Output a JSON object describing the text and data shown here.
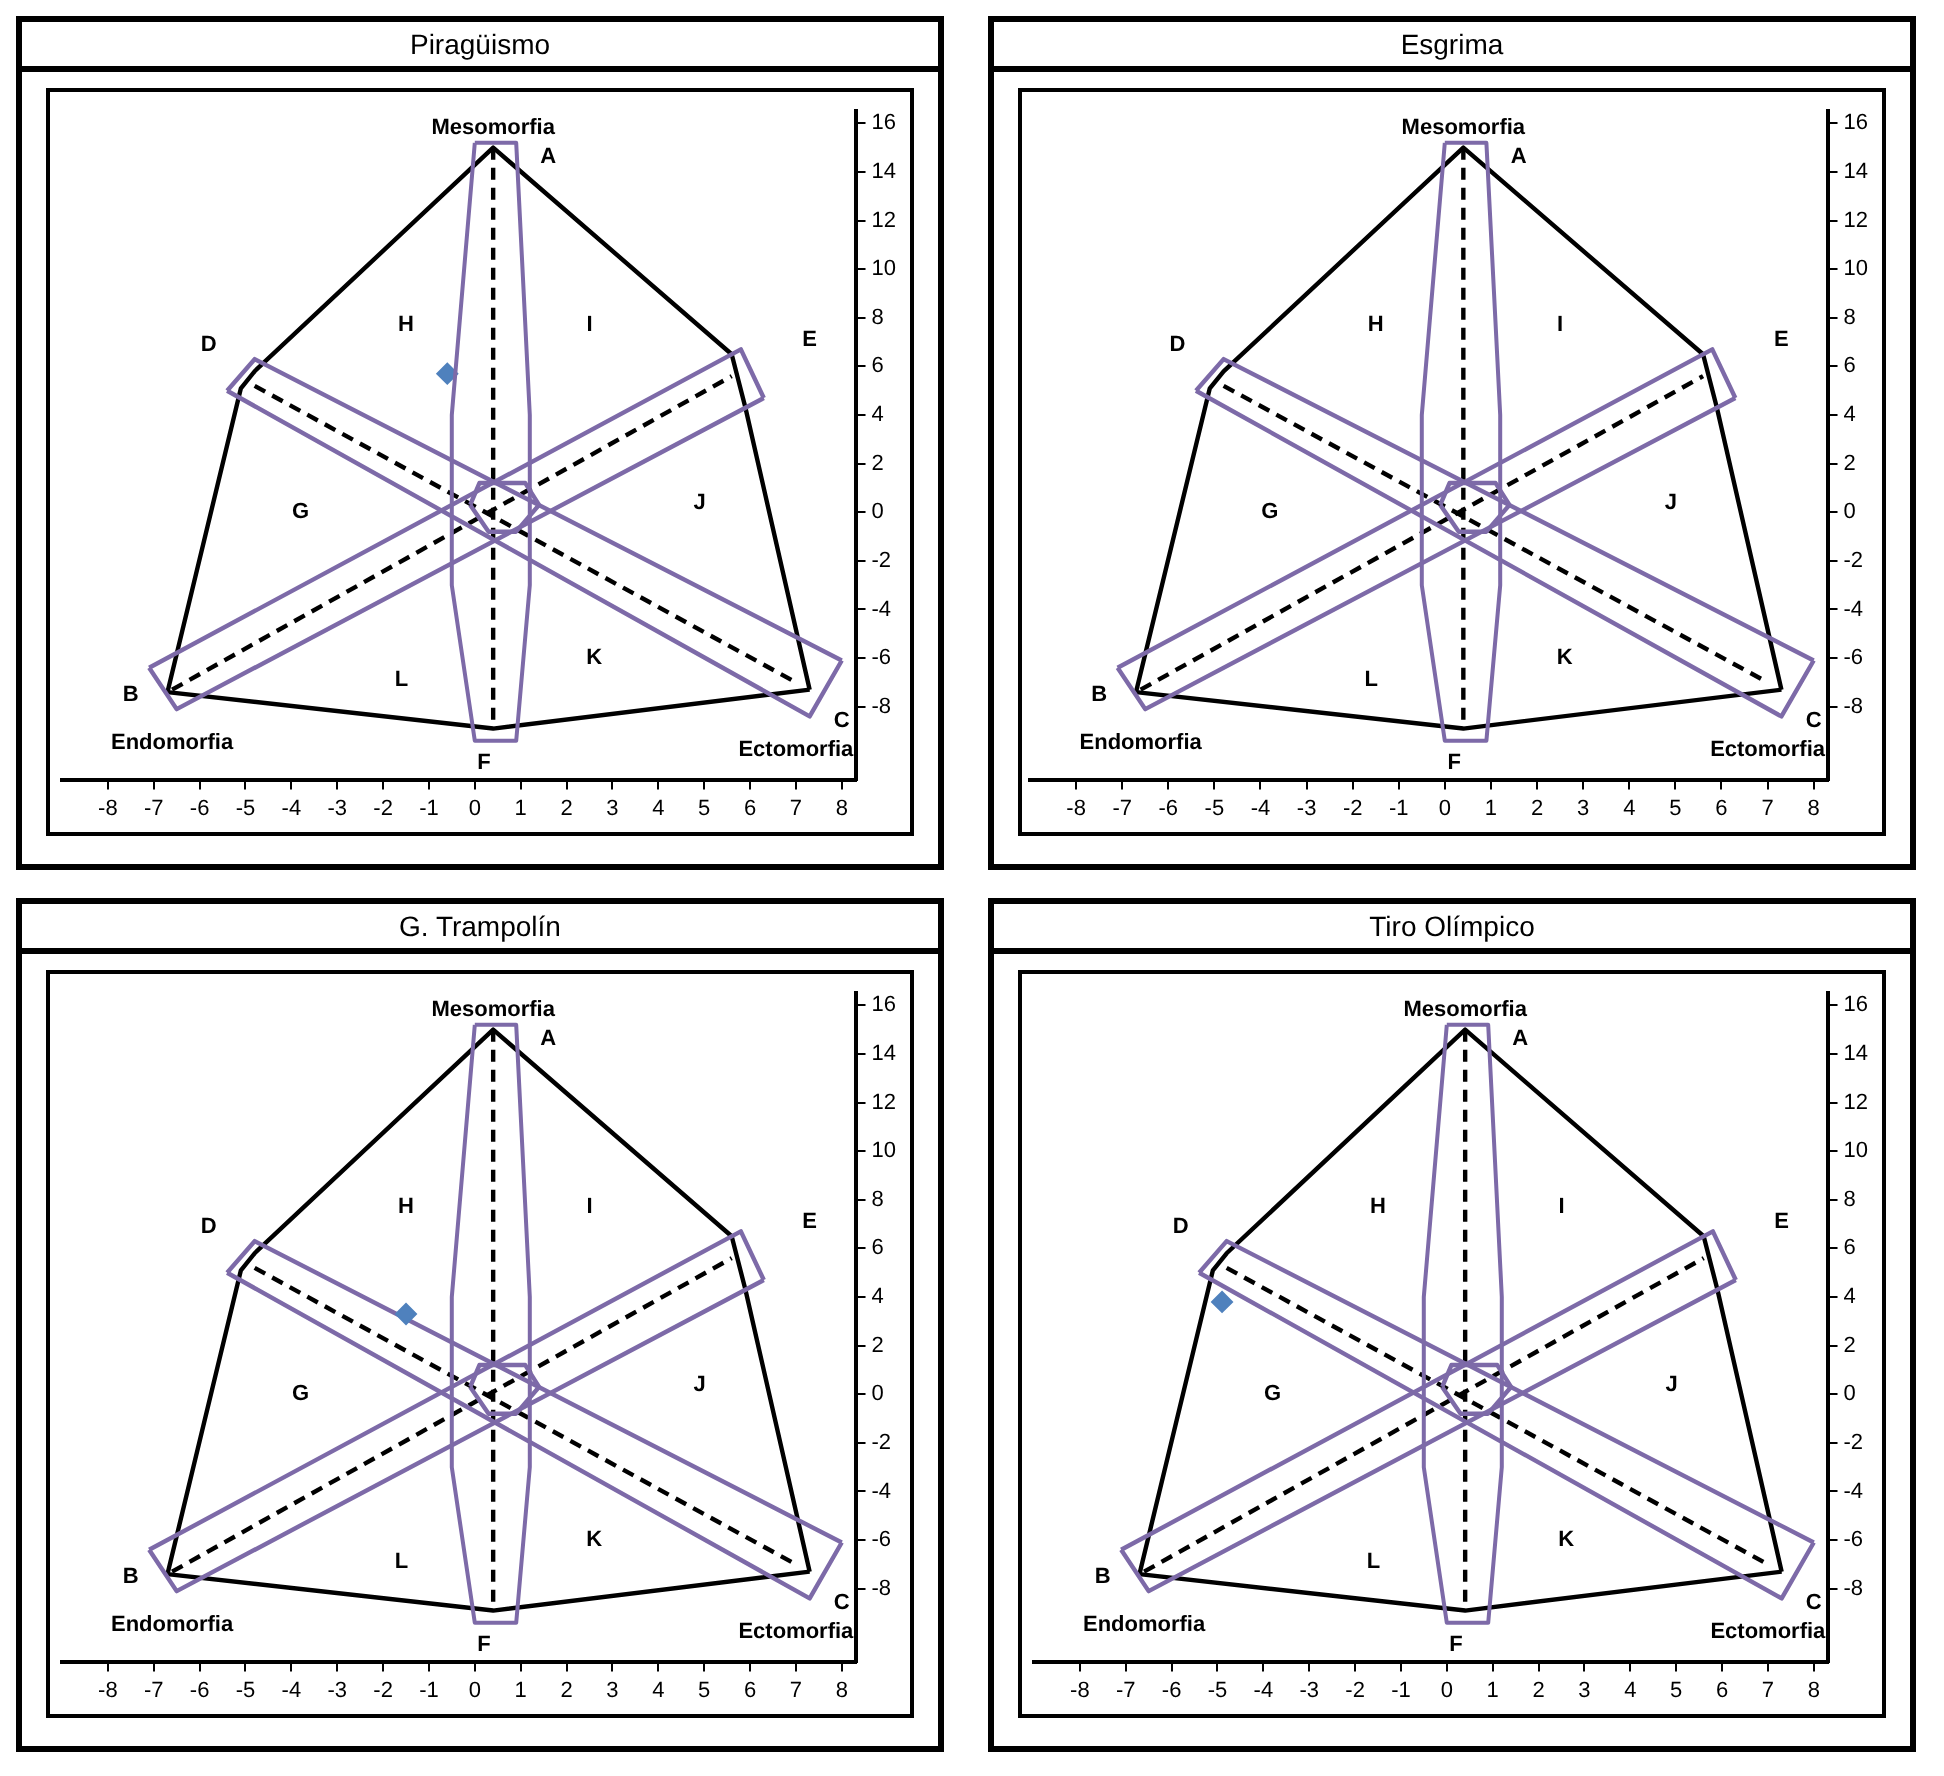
{
  "chart_data": [
    {
      "type": "scatter",
      "title": "Piragüismo",
      "xlim": [
        -9,
        8.3
      ],
      "ylim": [
        -11,
        16.5
      ],
      "xticks": [
        -8,
        -7,
        -6,
        -5,
        -4,
        -3,
        -2,
        -1,
        0,
        1,
        2,
        3,
        4,
        5,
        6,
        7,
        8
      ],
      "yticks": [
        -8,
        -6,
        -4,
        -2,
        0,
        2,
        4,
        6,
        8,
        10,
        12,
        14,
        16
      ],
      "grid": false,
      "legend": false,
      "series": [
        {
          "type": "line",
          "color": "#000000",
          "x": [
            -6.7,
            -5.1,
            -4.8,
            0.4,
            5.6,
            5.9,
            7.3
          ],
          "values": [
            -7.4,
            5.1,
            5.8,
            15,
            6.5,
            4.3,
            -7.3
          ]
        },
        {
          "type": "line",
          "color": "#000000",
          "x": [
            -6.7,
            0.4,
            7.3
          ],
          "values": [
            -7.4,
            -8.9,
            -7.3
          ]
        },
        {
          "type": "line",
          "line_style": "dashed",
          "color": "#000000",
          "x": [
            -4.8,
            7.0
          ],
          "values": [
            5.2,
            -7.0
          ]
        },
        {
          "type": "line",
          "line_style": "dashed",
          "color": "#000000",
          "x": [
            -6.6,
            5.6
          ],
          "values": [
            -7.3,
            5.6
          ]
        },
        {
          "type": "line",
          "color": "#7d6aa8",
          "x": [
            -5.4,
            -4.8,
            8.0
          ],
          "values": [
            5.0,
            6.3,
            -6.1
          ]
        },
        {
          "type": "line",
          "color": "#7d6aa8",
          "x": [
            -5.4,
            7.3,
            8.0
          ],
          "values": [
            5.0,
            -8.4,
            -6.1
          ]
        },
        {
          "type": "line",
          "color": "#7d6aa8",
          "x": [
            -7.1,
            5.8,
            6.3
          ],
          "values": [
            -6.4,
            6.7,
            4.7
          ]
        },
        {
          "type": "line",
          "color": "#7d6aa8",
          "x": [
            -7.1,
            -6.5,
            6.3
          ],
          "values": [
            -6.4,
            -8.1,
            4.7
          ]
        },
        {
          "type": "line",
          "color": "#7d6aa8",
          "x": [
            -0.1,
            0.1,
            1.1,
            1.4
          ],
          "values": [
            0.3,
            1.2,
            1.2,
            0.3
          ]
        },
        {
          "type": "line",
          "color": "#7d6aa8",
          "x": [
            -0.1,
            0.3,
            0.9,
            1.4
          ],
          "values": [
            0.3,
            -0.8,
            -0.8,
            0.3
          ]
        },
        {
          "type": "scatter",
          "marker": "diamond",
          "color": "#4f81bd",
          "x": [
            -0.6
          ],
          "values": [
            5.7
          ]
        }
      ],
      "ref_lines": [
        {
          "axis": "x",
          "value": 0.4,
          "line_style": "dashed",
          "color": "#000000"
        }
      ],
      "annotations": [
        "Mesomorfia",
        "A",
        "D",
        "H",
        "I",
        "E",
        "G",
        "J",
        "L",
        "K",
        "B",
        "C",
        "F",
        "Endomorfia",
        "Ectomorfia"
      ]
    },
    {
      "type": "scatter",
      "title": "Esgrima",
      "xlim": [
        -9,
        8.3
      ],
      "ylim": [
        -11,
        16.5
      ],
      "xticks": [
        -8,
        -7,
        -6,
        -5,
        -4,
        -3,
        -2,
        -1,
        0,
        1,
        2,
        3,
        4,
        5,
        6,
        7,
        8
      ],
      "yticks": [
        -8,
        -6,
        -4,
        -2,
        0,
        2,
        4,
        6,
        8,
        10,
        12,
        14,
        16
      ],
      "grid": false,
      "legend": false,
      "series": [
        {
          "type": "line",
          "color": "#000000",
          "x": [
            -6.7,
            -5.1,
            -4.8,
            0.4,
            5.6,
            5.9,
            7.3
          ],
          "values": [
            -7.4,
            5.1,
            5.8,
            15,
            6.5,
            4.3,
            -7.3
          ]
        },
        {
          "type": "line",
          "color": "#000000",
          "x": [
            -6.7,
            0.4,
            7.3
          ],
          "values": [
            -7.4,
            -8.9,
            -7.3
          ]
        },
        {
          "type": "line",
          "line_style": "dashed",
          "color": "#000000",
          "x": [
            -4.8,
            7.0
          ],
          "values": [
            5.2,
            -7.0
          ]
        },
        {
          "type": "line",
          "line_style": "dashed",
          "color": "#000000",
          "x": [
            -6.6,
            5.6
          ],
          "values": [
            -7.3,
            5.6
          ]
        },
        {
          "type": "line",
          "color": "#7d6aa8",
          "x": [
            -5.4,
            -4.8,
            8.0
          ],
          "values": [
            5.0,
            6.3,
            -6.1
          ]
        },
        {
          "type": "line",
          "color": "#7d6aa8",
          "x": [
            -5.4,
            7.3,
            8.0
          ],
          "values": [
            5.0,
            -8.4,
            -6.1
          ]
        },
        {
          "type": "line",
          "color": "#7d6aa8",
          "x": [
            -7.1,
            5.8,
            6.3
          ],
          "values": [
            -6.4,
            6.7,
            4.7
          ]
        },
        {
          "type": "line",
          "color": "#7d6aa8",
          "x": [
            -7.1,
            -6.5,
            6.3
          ],
          "values": [
            -6.4,
            -8.1,
            4.7
          ]
        },
        {
          "type": "line",
          "color": "#7d6aa8",
          "x": [
            -0.1,
            0.1,
            1.1,
            1.4
          ],
          "values": [
            0.3,
            1.2,
            1.2,
            0.3
          ]
        },
        {
          "type": "line",
          "color": "#7d6aa8",
          "x": [
            -0.1,
            0.3,
            0.9,
            1.4
          ],
          "values": [
            0.3,
            -0.8,
            -0.8,
            0.3
          ]
        }
      ],
      "ref_lines": [
        {
          "axis": "x",
          "value": 0.4,
          "line_style": "dashed",
          "color": "#000000"
        }
      ],
      "annotations": [
        "Mesomorfia",
        "A",
        "D",
        "H",
        "I",
        "E",
        "G",
        "J",
        "L",
        "K",
        "B",
        "C",
        "F",
        "Endomorfia",
        "Ectomorfia"
      ]
    },
    {
      "type": "scatter",
      "title": "G. Trampolín",
      "xlim": [
        -9,
        8.3
      ],
      "ylim": [
        -11,
        16.5
      ],
      "xticks": [
        -8,
        -7,
        -6,
        -5,
        -4,
        -3,
        -2,
        -1,
        0,
        1,
        2,
        3,
        4,
        5,
        6,
        7,
        8
      ],
      "yticks": [
        -8,
        -6,
        -4,
        -2,
        0,
        2,
        4,
        6,
        8,
        10,
        12,
        14,
        16
      ],
      "grid": false,
      "legend": false,
      "series": [
        {
          "type": "line",
          "color": "#000000",
          "x": [
            -6.7,
            -5.1,
            -4.8,
            0.4,
            5.6,
            5.9,
            7.3
          ],
          "values": [
            -7.4,
            5.1,
            5.8,
            15,
            6.5,
            4.3,
            -7.3
          ]
        },
        {
          "type": "line",
          "color": "#000000",
          "x": [
            -6.7,
            0.4,
            7.3
          ],
          "values": [
            -7.4,
            -8.9,
            -7.3
          ]
        },
        {
          "type": "line",
          "line_style": "dashed",
          "color": "#000000",
          "x": [
            -4.8,
            7.0
          ],
          "values": [
            5.2,
            -7.0
          ]
        },
        {
          "type": "line",
          "line_style": "dashed",
          "color": "#000000",
          "x": [
            -6.6,
            5.6
          ],
          "values": [
            -7.3,
            5.6
          ]
        },
        {
          "type": "line",
          "color": "#7d6aa8",
          "x": [
            -5.4,
            -4.8,
            8.0
          ],
          "values": [
            5.0,
            6.3,
            -6.1
          ]
        },
        {
          "type": "line",
          "color": "#7d6aa8",
          "x": [
            -5.4,
            7.3,
            8.0
          ],
          "values": [
            5.0,
            -8.4,
            -6.1
          ]
        },
        {
          "type": "line",
          "color": "#7d6aa8",
          "x": [
            -7.1,
            5.8,
            6.3
          ],
          "values": [
            -6.4,
            6.7,
            4.7
          ]
        },
        {
          "type": "line",
          "color": "#7d6aa8",
          "x": [
            -7.1,
            -6.5,
            6.3
          ],
          "values": [
            -6.4,
            -8.1,
            4.7
          ]
        },
        {
          "type": "line",
          "color": "#7d6aa8",
          "x": [
            -0.1,
            0.1,
            1.1,
            1.4
          ],
          "values": [
            0.3,
            1.2,
            1.2,
            0.3
          ]
        },
        {
          "type": "line",
          "color": "#7d6aa8",
          "x": [
            -0.1,
            0.3,
            0.9,
            1.4
          ],
          "values": [
            0.3,
            -0.8,
            -0.8,
            0.3
          ]
        },
        {
          "type": "scatter",
          "marker": "diamond",
          "color": "#4f81bd",
          "x": [
            -1.5
          ],
          "values": [
            3.3
          ]
        }
      ],
      "ref_lines": [
        {
          "axis": "x",
          "value": 0.4,
          "line_style": "dashed",
          "color": "#000000"
        }
      ],
      "annotations": [
        "Mesomorfia",
        "A",
        "D",
        "H",
        "I",
        "E",
        "G",
        "J",
        "L",
        "K",
        "B",
        "C",
        "F",
        "Endomorfia",
        "Ectomorfia"
      ]
    },
    {
      "type": "scatter",
      "title": "Tiro Olímpico",
      "xlim": [
        -9,
        8.3
      ],
      "ylim": [
        -11,
        16.5
      ],
      "xticks": [
        -8,
        -7,
        -6,
        -5,
        -4,
        -3,
        -2,
        -1,
        0,
        1,
        2,
        3,
        4,
        5,
        6,
        7,
        8
      ],
      "yticks": [
        -8,
        -6,
        -4,
        -2,
        0,
        2,
        4,
        6,
        8,
        10,
        12,
        14,
        16
      ],
      "grid": false,
      "legend": false,
      "series": [
        {
          "type": "line",
          "color": "#000000",
          "x": [
            -6.7,
            -5.1,
            -4.8,
            0.4,
            5.6,
            5.9,
            7.3
          ],
          "values": [
            -7.4,
            5.1,
            5.8,
            15,
            6.5,
            4.3,
            -7.3
          ]
        },
        {
          "type": "line",
          "color": "#000000",
          "x": [
            -6.7,
            0.4,
            7.3
          ],
          "values": [
            -7.4,
            -8.9,
            -7.3
          ]
        },
        {
          "type": "line",
          "line_style": "dashed",
          "color": "#000000",
          "x": [
            -4.8,
            7.0
          ],
          "values": [
            5.2,
            -7.0
          ]
        },
        {
          "type": "line",
          "line_style": "dashed",
          "color": "#000000",
          "x": [
            -6.6,
            5.6
          ],
          "values": [
            -7.3,
            5.6
          ]
        },
        {
          "type": "line",
          "color": "#7d6aa8",
          "x": [
            -5.4,
            -4.8,
            8.0
          ],
          "values": [
            5.0,
            6.3,
            -6.1
          ]
        },
        {
          "type": "line",
          "color": "#7d6aa8",
          "x": [
            -5.4,
            7.3,
            8.0
          ],
          "values": [
            5.0,
            -8.4,
            -6.1
          ]
        },
        {
          "type": "line",
          "color": "#7d6aa8",
          "x": [
            -7.1,
            5.8,
            6.3
          ],
          "values": [
            -6.4,
            6.7,
            4.7
          ]
        },
        {
          "type": "line",
          "color": "#7d6aa8",
          "x": [
            -7.1,
            -6.5,
            6.3
          ],
          "values": [
            -6.4,
            -8.1,
            4.7
          ]
        },
        {
          "type": "line",
          "color": "#7d6aa8",
          "x": [
            -0.1,
            0.1,
            1.1,
            1.4
          ],
          "values": [
            0.3,
            1.2,
            1.2,
            0.3
          ]
        },
        {
          "type": "line",
          "color": "#7d6aa8",
          "x": [
            -0.1,
            0.3,
            0.9,
            1.4
          ],
          "values": [
            0.3,
            -0.8,
            -0.8,
            0.3
          ]
        },
        {
          "type": "scatter",
          "marker": "diamond",
          "color": "#4f81bd",
          "x": [
            -4.9
          ],
          "values": [
            3.8
          ]
        }
      ],
      "ref_lines": [
        {
          "axis": "x",
          "value": 0.4,
          "line_style": "dashed",
          "color": "#000000"
        }
      ],
      "annotations": [
        "Mesomorfia",
        "A",
        "D",
        "H",
        "I",
        "E",
        "G",
        "J",
        "L",
        "K",
        "B",
        "C",
        "F",
        "Endomorfia",
        "Ectomorfia"
      ]
    }
  ]
}
